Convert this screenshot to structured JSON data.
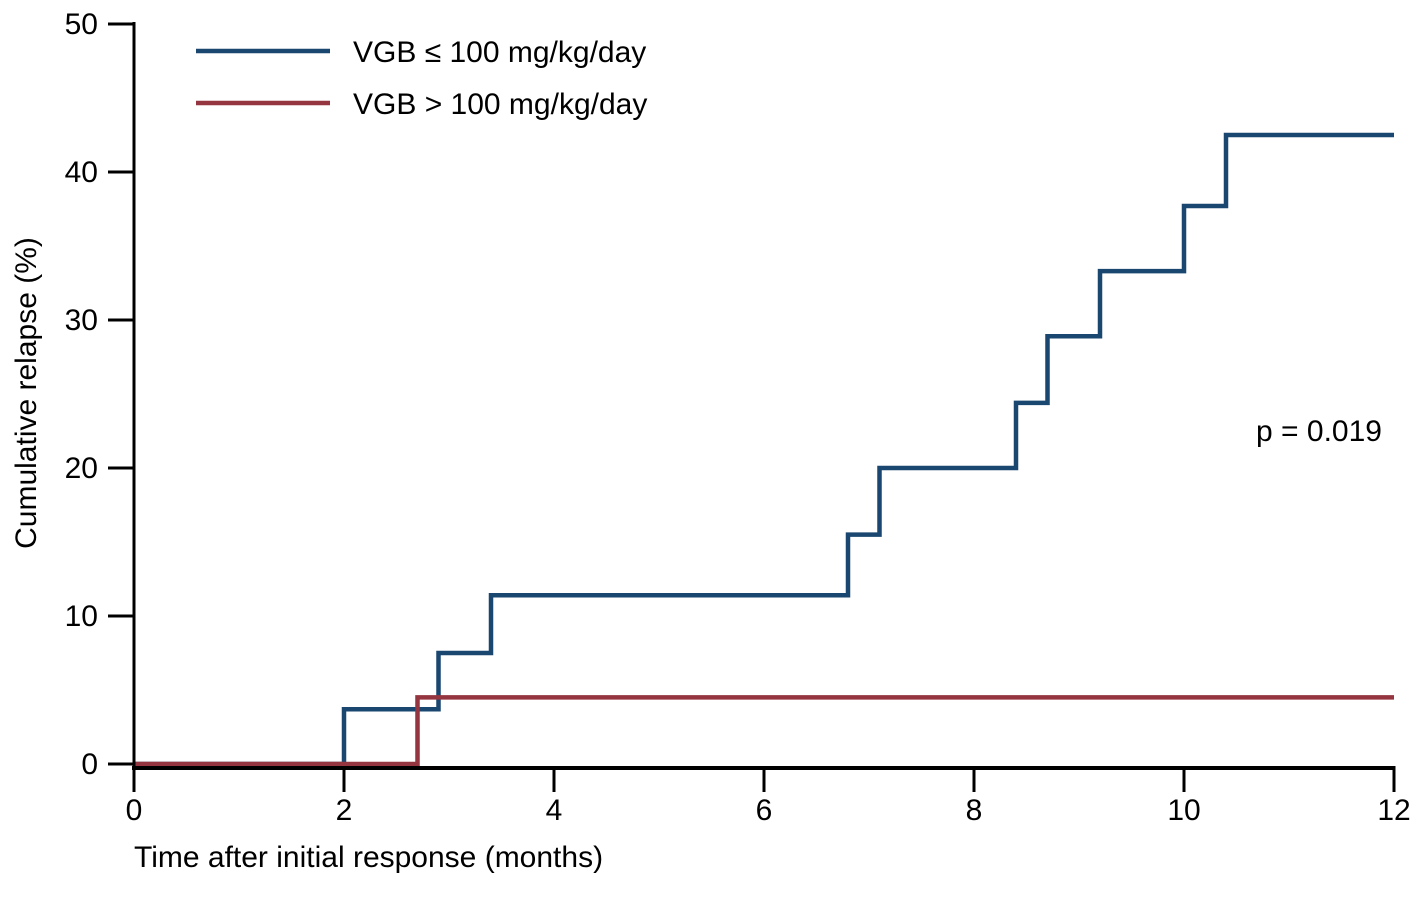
{
  "figure": {
    "p_value_label": "p = 0.019"
  },
  "legend": {
    "items": [
      {
        "label": "VGB ≤ 100 mg/kg/day",
        "color": "#1a476f"
      },
      {
        "label": "VGB > 100 mg/kg/day",
        "color": "#94353f"
      }
    ]
  },
  "chart_data": {
    "type": "line",
    "subtype": "step-cumulative-incidence",
    "title": "",
    "xlabel": "Time after initial response (months)",
    "ylabel": "Cumulative relapse (%)",
    "xlim": [
      0,
      12
    ],
    "ylim": [
      0,
      50
    ],
    "x_ticks": [
      0,
      2,
      4,
      6,
      8,
      10,
      12
    ],
    "y_ticks": [
      0,
      10,
      20,
      30,
      40,
      50
    ],
    "grid": false,
    "legend_position": "top-left-inside",
    "annotations": [
      {
        "text": "p = 0.019",
        "x": 11.3,
        "y": 22.5
      }
    ],
    "series": [
      {
        "name": "VGB ≤ 100 mg/kg/day",
        "color": "#1a476f",
        "step_points": [
          [
            0,
            0
          ],
          [
            2.0,
            3.7
          ],
          [
            2.9,
            7.5
          ],
          [
            3.4,
            11.4
          ],
          [
            6.8,
            15.5
          ],
          [
            7.1,
            20.0
          ],
          [
            8.4,
            24.4
          ],
          [
            8.7,
            28.9
          ],
          [
            9.2,
            33.3
          ],
          [
            10.0,
            37.7
          ],
          [
            10.4,
            42.5
          ]
        ],
        "end_x": 12
      },
      {
        "name": "VGB > 100 mg/kg/day",
        "color": "#94353f",
        "step_points": [
          [
            0,
            0
          ],
          [
            2.7,
            4.5
          ]
        ],
        "end_x": 12
      }
    ]
  }
}
